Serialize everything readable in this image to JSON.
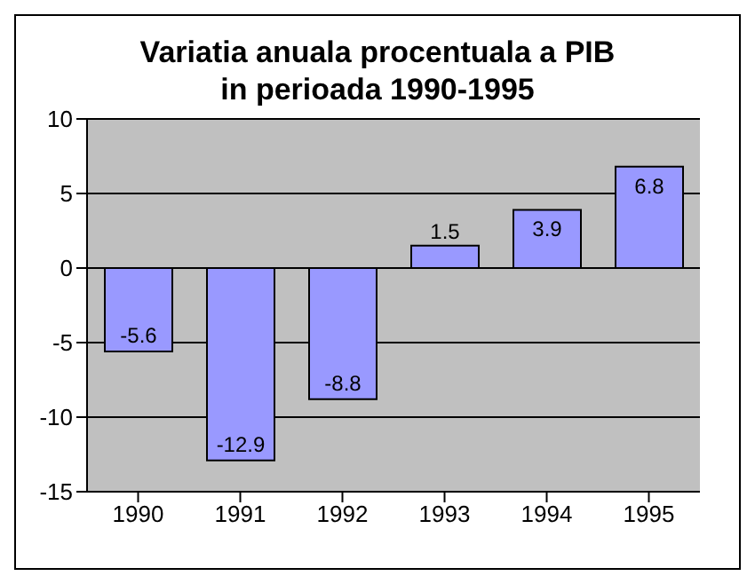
{
  "chart_data": {
    "type": "bar",
    "title": "Variatia anuala procentuala a PIB\nin perioada 1990-1995",
    "categories": [
      "1990",
      "1991",
      "1992",
      "1993",
      "1994",
      "1995"
    ],
    "values": [
      -5.6,
      -12.9,
      -8.8,
      1.5,
      3.9,
      6.8
    ],
    "color": "#9999ff",
    "ylim": [
      -15,
      10
    ],
    "yticks": [
      -15,
      -10,
      -5,
      0,
      5,
      10
    ],
    "grid": "y",
    "data_labels": true
  }
}
